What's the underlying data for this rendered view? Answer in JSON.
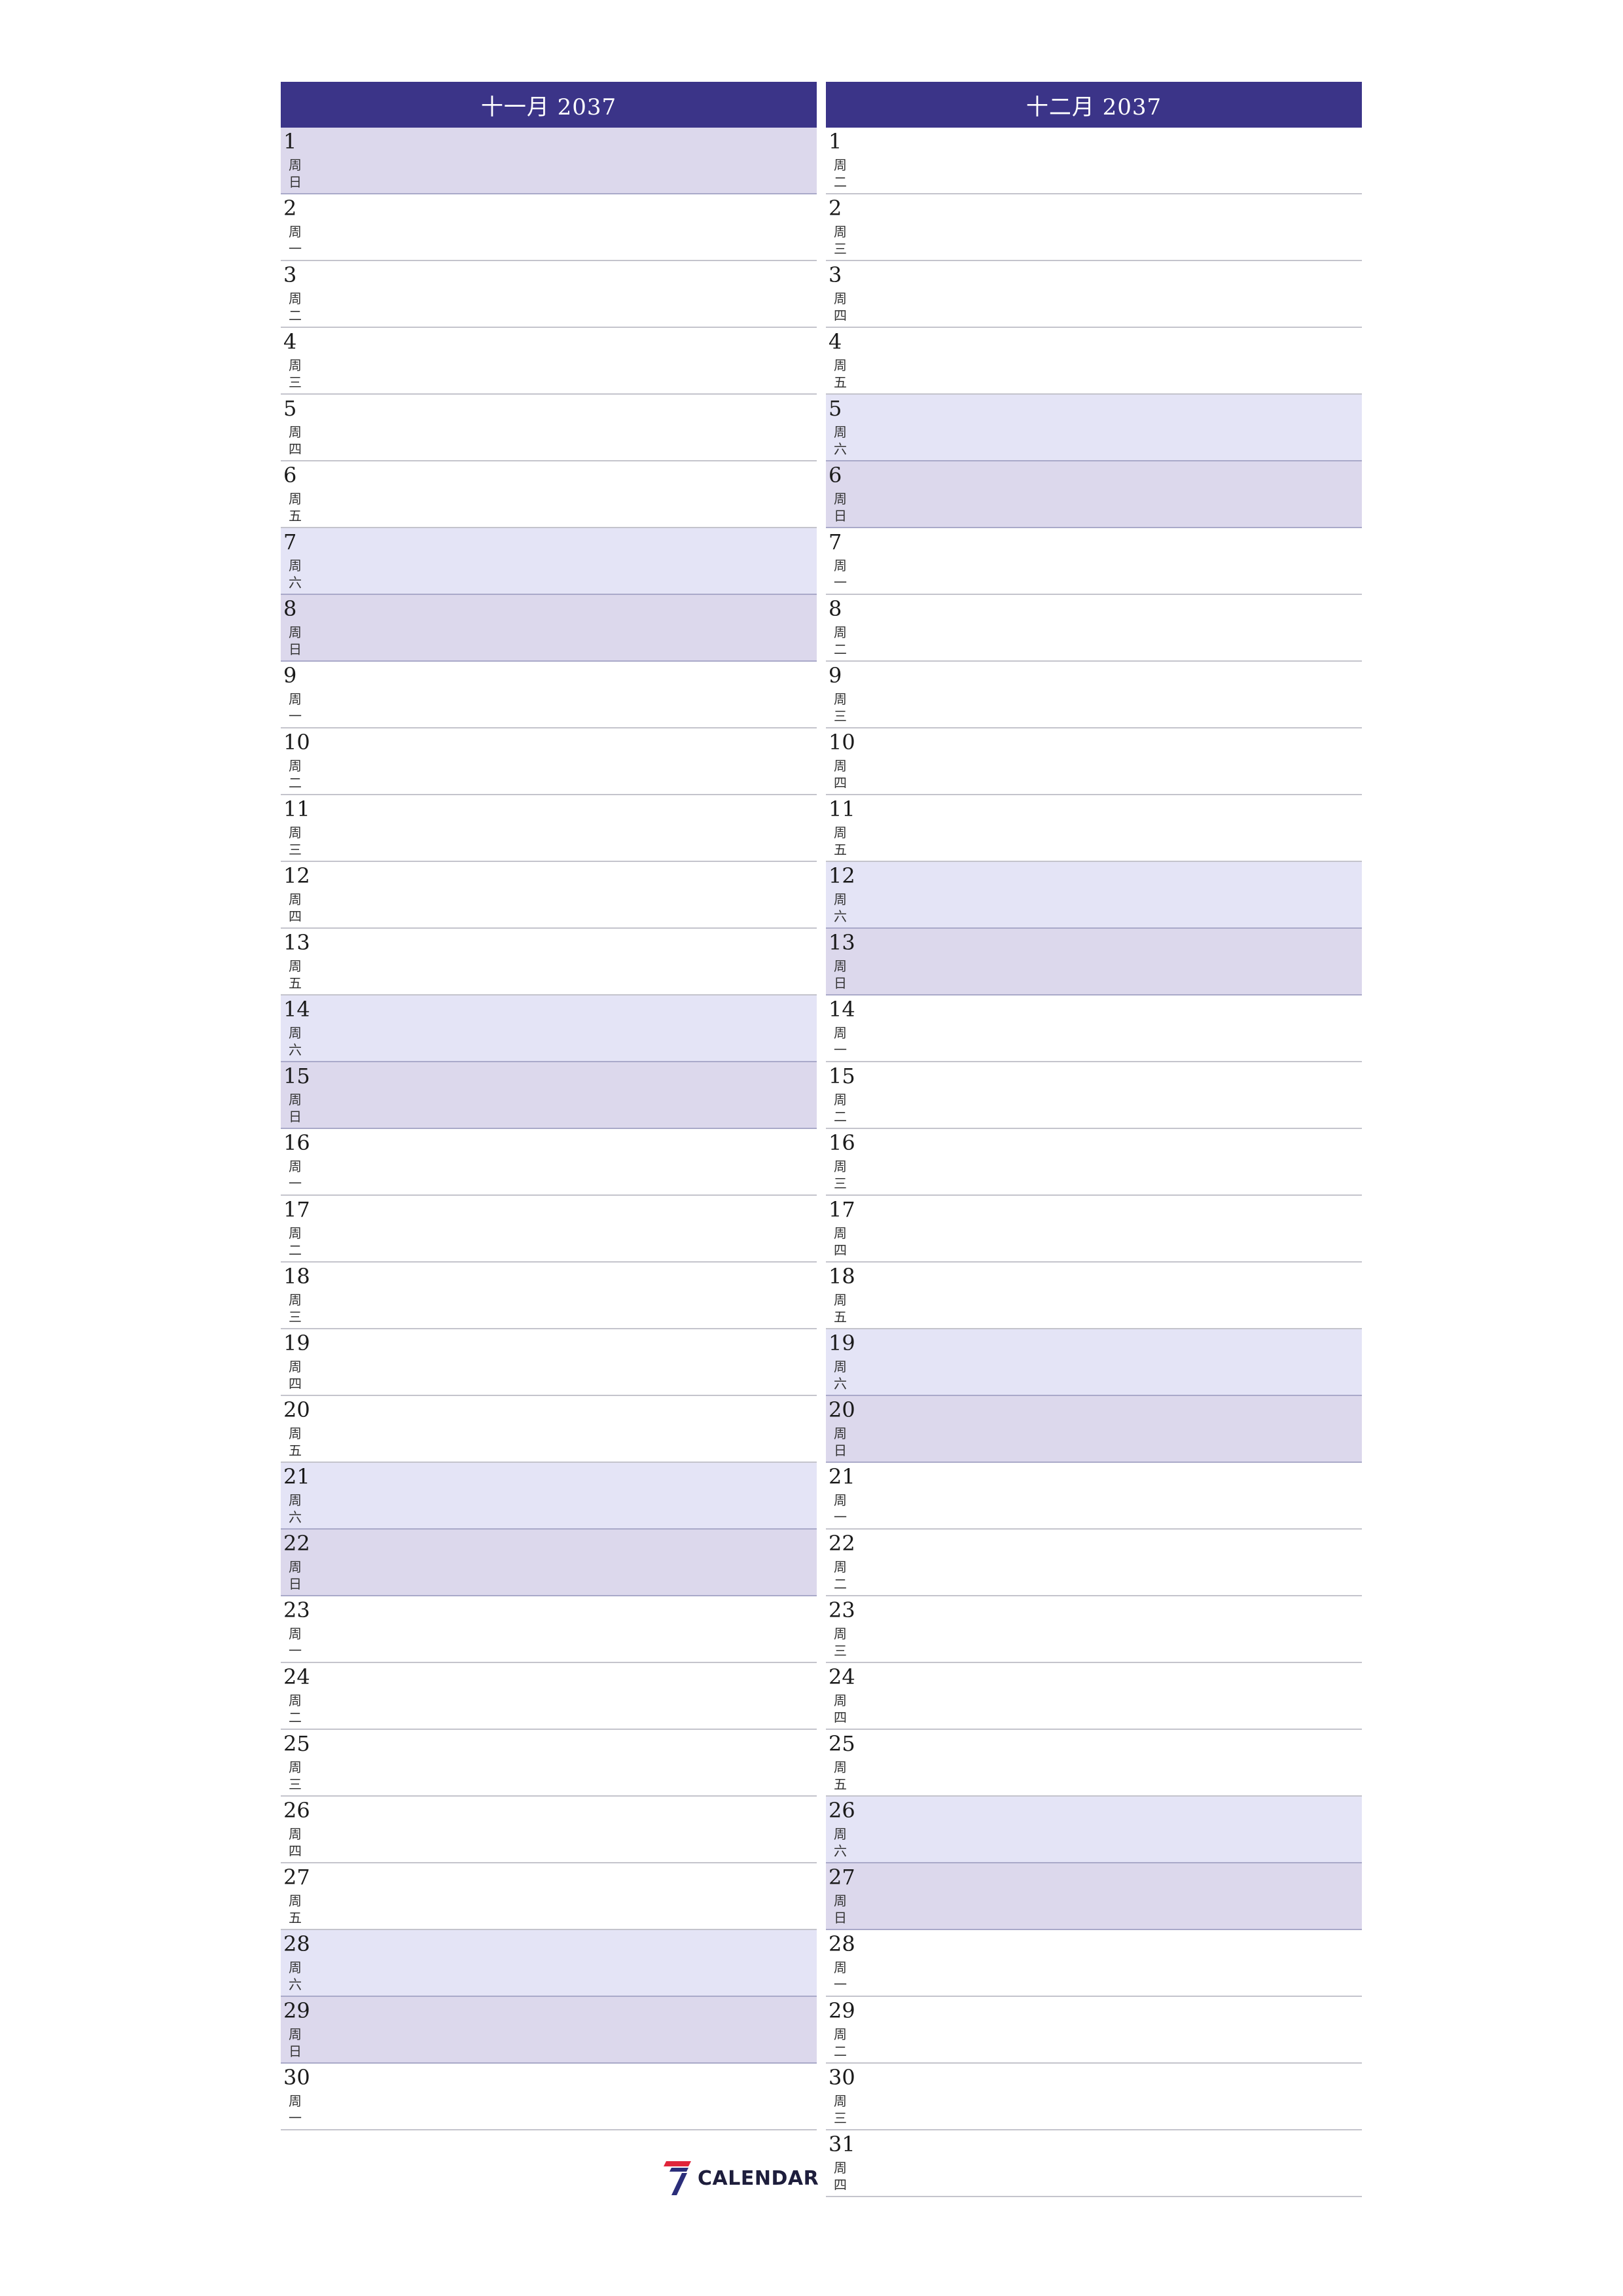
{
  "months": [
    {
      "title": "十一月 2037",
      "days": [
        {
          "num": "1",
          "wd": "周日",
          "type": "sun"
        },
        {
          "num": "2",
          "wd": "周一",
          "type": ""
        },
        {
          "num": "3",
          "wd": "周二",
          "type": ""
        },
        {
          "num": "4",
          "wd": "周三",
          "type": ""
        },
        {
          "num": "5",
          "wd": "周四",
          "type": ""
        },
        {
          "num": "6",
          "wd": "周五",
          "type": ""
        },
        {
          "num": "7",
          "wd": "周六",
          "type": "sat"
        },
        {
          "num": "8",
          "wd": "周日",
          "type": "sun"
        },
        {
          "num": "9",
          "wd": "周一",
          "type": ""
        },
        {
          "num": "10",
          "wd": "周二",
          "type": ""
        },
        {
          "num": "11",
          "wd": "周三",
          "type": ""
        },
        {
          "num": "12",
          "wd": "周四",
          "type": ""
        },
        {
          "num": "13",
          "wd": "周五",
          "type": ""
        },
        {
          "num": "14",
          "wd": "周六",
          "type": "sat"
        },
        {
          "num": "15",
          "wd": "周日",
          "type": "sun"
        },
        {
          "num": "16",
          "wd": "周一",
          "type": ""
        },
        {
          "num": "17",
          "wd": "周二",
          "type": ""
        },
        {
          "num": "18",
          "wd": "周三",
          "type": ""
        },
        {
          "num": "19",
          "wd": "周四",
          "type": ""
        },
        {
          "num": "20",
          "wd": "周五",
          "type": ""
        },
        {
          "num": "21",
          "wd": "周六",
          "type": "sat"
        },
        {
          "num": "22",
          "wd": "周日",
          "type": "sun"
        },
        {
          "num": "23",
          "wd": "周一",
          "type": ""
        },
        {
          "num": "24",
          "wd": "周二",
          "type": ""
        },
        {
          "num": "25",
          "wd": "周三",
          "type": ""
        },
        {
          "num": "26",
          "wd": "周四",
          "type": ""
        },
        {
          "num": "27",
          "wd": "周五",
          "type": ""
        },
        {
          "num": "28",
          "wd": "周六",
          "type": "sat"
        },
        {
          "num": "29",
          "wd": "周日",
          "type": "sun"
        },
        {
          "num": "30",
          "wd": "周一",
          "type": ""
        }
      ]
    },
    {
      "title": "十二月 2037",
      "days": [
        {
          "num": "1",
          "wd": "周二",
          "type": ""
        },
        {
          "num": "2",
          "wd": "周三",
          "type": ""
        },
        {
          "num": "3",
          "wd": "周四",
          "type": ""
        },
        {
          "num": "4",
          "wd": "周五",
          "type": ""
        },
        {
          "num": "5",
          "wd": "周六",
          "type": "sat"
        },
        {
          "num": "6",
          "wd": "周日",
          "type": "sun"
        },
        {
          "num": "7",
          "wd": "周一",
          "type": ""
        },
        {
          "num": "8",
          "wd": "周二",
          "type": ""
        },
        {
          "num": "9",
          "wd": "周三",
          "type": ""
        },
        {
          "num": "10",
          "wd": "周四",
          "type": ""
        },
        {
          "num": "11",
          "wd": "周五",
          "type": ""
        },
        {
          "num": "12",
          "wd": "周六",
          "type": "sat"
        },
        {
          "num": "13",
          "wd": "周日",
          "type": "sun"
        },
        {
          "num": "14",
          "wd": "周一",
          "type": ""
        },
        {
          "num": "15",
          "wd": "周二",
          "type": ""
        },
        {
          "num": "16",
          "wd": "周三",
          "type": ""
        },
        {
          "num": "17",
          "wd": "周四",
          "type": ""
        },
        {
          "num": "18",
          "wd": "周五",
          "type": ""
        },
        {
          "num": "19",
          "wd": "周六",
          "type": "sat"
        },
        {
          "num": "20",
          "wd": "周日",
          "type": "sun"
        },
        {
          "num": "21",
          "wd": "周一",
          "type": ""
        },
        {
          "num": "22",
          "wd": "周二",
          "type": ""
        },
        {
          "num": "23",
          "wd": "周三",
          "type": ""
        },
        {
          "num": "24",
          "wd": "周四",
          "type": ""
        },
        {
          "num": "25",
          "wd": "周五",
          "type": ""
        },
        {
          "num": "26",
          "wd": "周六",
          "type": "sat"
        },
        {
          "num": "27",
          "wd": "周日",
          "type": "sun"
        },
        {
          "num": "28",
          "wd": "周一",
          "type": ""
        },
        {
          "num": "29",
          "wd": "周二",
          "type": ""
        },
        {
          "num": "30",
          "wd": "周三",
          "type": ""
        },
        {
          "num": "31",
          "wd": "周四",
          "type": ""
        }
      ]
    }
  ],
  "logo": {
    "text": "CALENDAR",
    "mark": "7",
    "icon": "seven-calendar-logo-icon"
  },
  "colors": {
    "header": "#3b3488",
    "saturday": "#e4e4f6",
    "sunday": "#dcd8ec",
    "logo_red": "#e0253a",
    "logo_navy": "#2b2e7a"
  }
}
